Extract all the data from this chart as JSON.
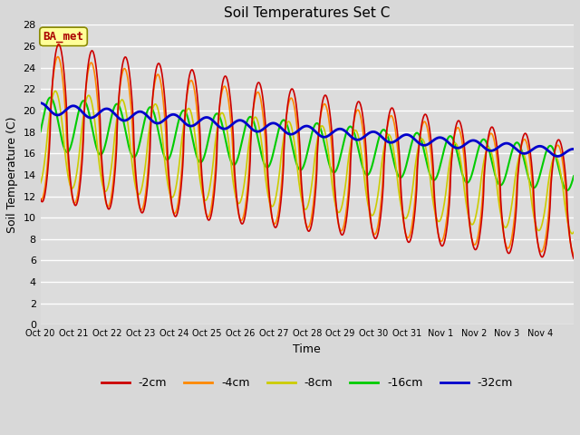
{
  "title": "Soil Temperatures Set C",
  "xlabel": "Time",
  "ylabel": "Soil Temperature (C)",
  "ylim": [
    0,
    28
  ],
  "yticks": [
    0,
    2,
    4,
    6,
    8,
    10,
    12,
    14,
    16,
    18,
    20,
    22,
    24,
    26,
    28
  ],
  "xtick_labels": [
    "Oct 20",
    "Oct 21",
    "Oct 22",
    "Oct 23",
    "Oct 24",
    "Oct 25",
    "Oct 26",
    "Oct 27",
    "Oct 28",
    "Oct 29",
    "Oct 30",
    "Oct 31",
    "Nov 1",
    "Nov 2",
    "Nov 3",
    "Nov 4"
  ],
  "series": {
    "-2cm": {
      "color": "#cc0000",
      "lw": 1.2
    },
    "-4cm": {
      "color": "#ff8800",
      "lw": 1.2
    },
    "-8cm": {
      "color": "#cccc00",
      "lw": 1.2
    },
    "-16cm": {
      "color": "#00cc00",
      "lw": 1.5
    },
    "-32cm": {
      "color": "#0000cc",
      "lw": 2.0
    }
  },
  "annotation_text": "BA_met",
  "annotation_color": "#aa0000",
  "annotation_bg": "#ffff99",
  "plot_bg": "#dcdcdc",
  "grid_color": "#ffffff",
  "num_points": 1440
}
